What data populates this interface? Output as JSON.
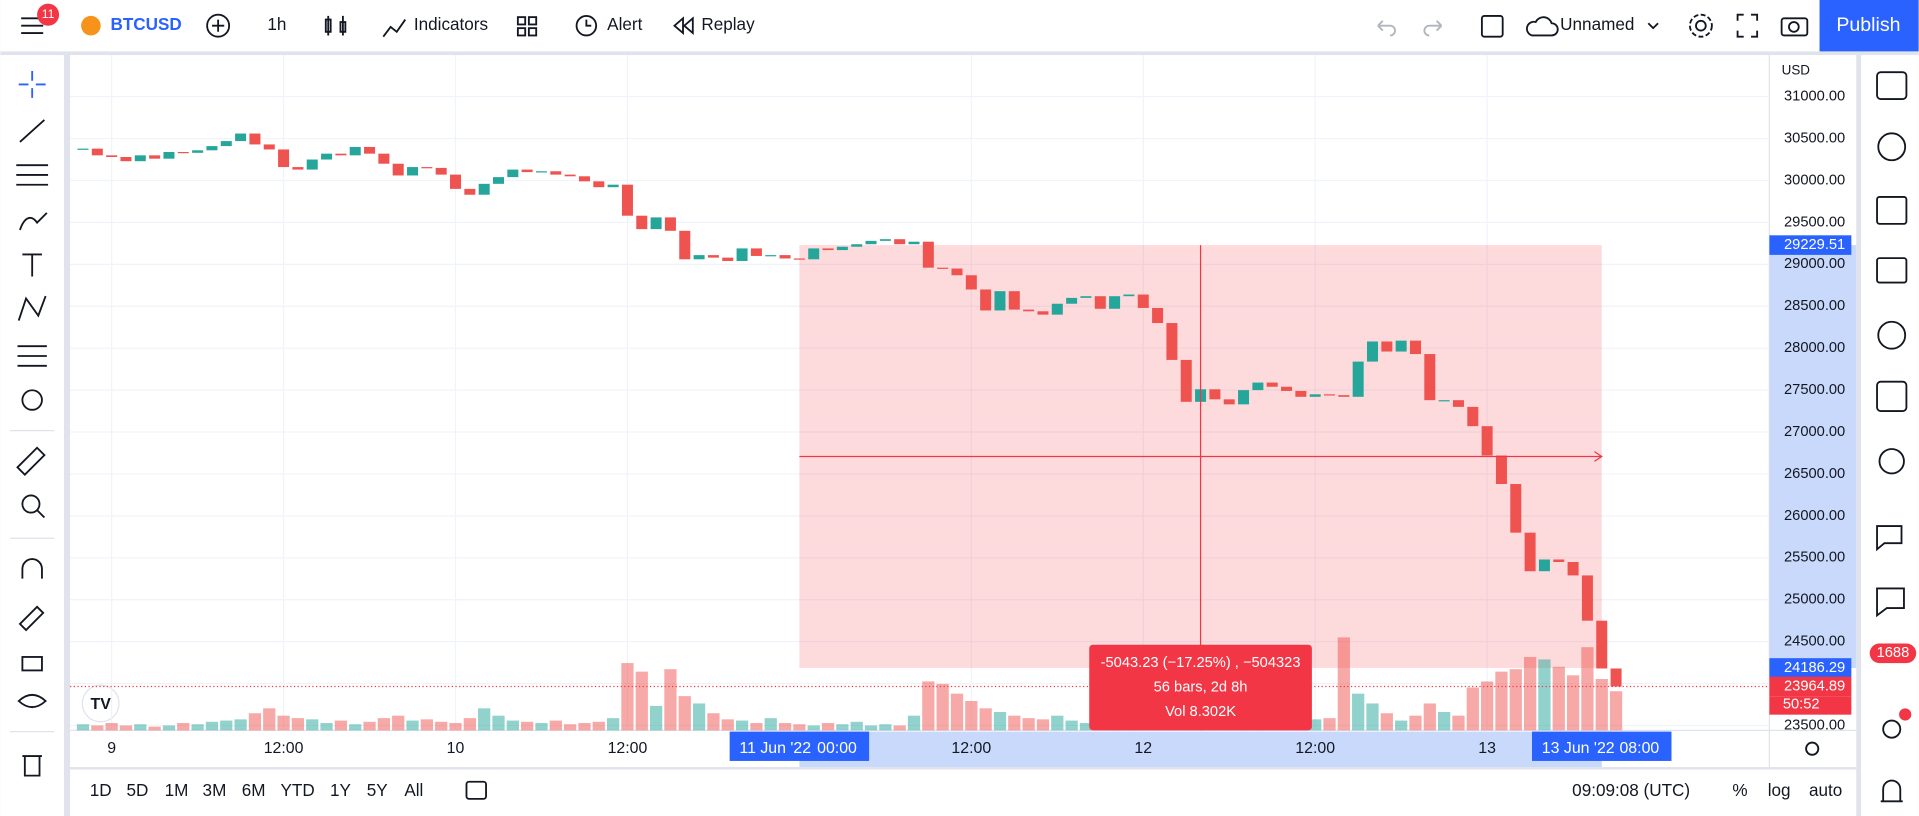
{
  "header": {
    "badge": "11",
    "symbol": "BTCUSD",
    "interval": "1h",
    "buttons": [
      "Indicators",
      "Alert",
      "Replay"
    ],
    "layout_name": "Unnamed",
    "publish": "Publish"
  },
  "footer": {
    "ranges": [
      "1D",
      "5D",
      "1M",
      "3M",
      "6M",
      "YTD",
      "1Y",
      "5Y",
      "All"
    ],
    "clock": "09:09:08 (UTC)",
    "scale_options": [
      "%",
      "log",
      "auto"
    ]
  },
  "sidebar": {
    "notifications": "1688"
  },
  "chart_data": {
    "type": "candlestick",
    "currency": "USD",
    "up_color": "#26a69a",
    "down_color": "#ef5350",
    "x": [
      -2,
      -1,
      0,
      1,
      2,
      3,
      4,
      5,
      6,
      7,
      8,
      9,
      10,
      11,
      12,
      13,
      14,
      15,
      16,
      17,
      18,
      19,
      20,
      21,
      22,
      23,
      24,
      25,
      26,
      27,
      28,
      29,
      30,
      31,
      32,
      33,
      34,
      35,
      36,
      37,
      38,
      39,
      40,
      41,
      42,
      43,
      44,
      45,
      46,
      47,
      48,
      49,
      50,
      51,
      52,
      53,
      54,
      55,
      56,
      57,
      58,
      59,
      60,
      61,
      62,
      63,
      64,
      65,
      66,
      67,
      68,
      69,
      70,
      71,
      72,
      73,
      74,
      75,
      76,
      77,
      78,
      79,
      80,
      81,
      82,
      83,
      84,
      85,
      86,
      87,
      88,
      89,
      90,
      91,
      92,
      93,
      94,
      95,
      96,
      97,
      98,
      99,
      100,
      101,
      102,
      103,
      104,
      105
    ],
    "close": [
      30380,
      30300,
      30280,
      30230,
      30300,
      30260,
      30340,
      30330,
      30360,
      30410,
      30470,
      30560,
      30430,
      30370,
      30160,
      30130,
      30250,
      30320,
      30300,
      30400,
      30320,
      30200,
      30060,
      30160,
      30150,
      30070,
      29900,
      29830,
      29960,
      30040,
      30130,
      30100,
      30110,
      30070,
      30050,
      29990,
      29920,
      29950,
      29580,
      29420,
      29560,
      29400,
      29060,
      29110,
      29080,
      29040,
      29190,
      29100,
      29110,
      29070,
      29060,
      29190,
      29170,
      29210,
      29240,
      29280,
      29300,
      29240,
      29270,
      28960,
      28950,
      28870,
      28700,
      28450,
      28680,
      28460,
      28440,
      28400,
      28530,
      28600,
      28620,
      28470,
      28620,
      28640,
      28480,
      28300,
      27860,
      27360,
      27510,
      27390,
      27330,
      27500,
      27590,
      27540,
      27490,
      27420,
      27450,
      27440,
      27420,
      27840,
      28080,
      27960,
      28090,
      27930,
      27380,
      27380,
      27300,
      27070,
      26720,
      26380,
      25800,
      25340,
      25480,
      25450,
      25290,
      24750,
      24180,
      23965
    ],
    "volume": [
      5,
      4,
      6,
      4,
      5,
      3,
      4,
      6,
      5,
      7,
      8,
      9,
      14,
      18,
      12,
      10,
      9,
      6,
      8,
      5,
      7,
      10,
      12,
      8,
      9,
      7,
      6,
      10,
      18,
      12,
      8,
      7,
      6,
      8,
      5,
      6,
      7,
      10,
      55,
      48,
      20,
      50,
      28,
      22,
      14,
      9,
      8,
      6,
      10,
      6,
      5,
      4,
      6,
      5,
      7,
      4,
      5,
      4,
      12,
      40,
      38,
      30,
      24,
      18,
      15,
      12,
      10,
      9,
      12,
      8,
      6,
      5,
      5,
      4,
      3,
      6,
      18,
      12,
      9,
      7,
      8,
      6,
      7,
      8,
      5,
      6,
      9,
      10,
      76,
      30,
      22,
      14,
      8,
      12,
      22,
      15,
      12,
      35,
      40,
      48,
      50,
      60,
      58,
      52,
      45,
      68,
      42,
      32
    ],
    "xlim": [
      -2.9,
      115.7
    ],
    "xticks": [
      {
        "value": 0,
        "label": "9"
      },
      {
        "value": 12,
        "label": "12:00"
      },
      {
        "value": 24,
        "label": "10"
      },
      {
        "value": 36,
        "label": "12:00"
      },
      {
        "value": 60,
        "label": "12:00"
      },
      {
        "value": 72,
        "label": "12"
      },
      {
        "value": 84,
        "label": "12:00"
      },
      {
        "value": 96,
        "label": "13"
      }
    ],
    "ylim": [
      23442,
      31496
    ],
    "yticks": [
      {
        "value": 23500,
        "label": "23500.00"
      },
      {
        "value": 24000,
        "label": "24000.00"
      },
      {
        "value": 24500,
        "label": "24500.00"
      },
      {
        "value": 25000,
        "label": "25000.00"
      },
      {
        "value": 25500,
        "label": "25500.00"
      },
      {
        "value": 26000,
        "label": "26000.00"
      },
      {
        "value": 26500,
        "label": "26500.00"
      },
      {
        "value": 27000,
        "label": "27000.00"
      },
      {
        "value": 27500,
        "label": "27500.00"
      },
      {
        "value": 28000,
        "label": "28000.00"
      },
      {
        "value": 28500,
        "label": "28500.00"
      },
      {
        "value": 29000,
        "label": "29000.00"
      },
      {
        "value": 29500,
        "label": "29500.00"
      },
      {
        "value": 30000,
        "label": "30000.00"
      },
      {
        "value": 30500,
        "label": "30500.00"
      },
      {
        "value": 31000,
        "label": "31000.00"
      }
    ],
    "grid": true,
    "measure": {
      "x_range": [
        48,
        104
      ],
      "y_range": [
        24186.29,
        29229.51
      ],
      "crosshair_x": 76,
      "color": "#f23645",
      "lines": [
        "-5043.23 (−17.25%) , −504323",
        "56 bars, 2d 8h",
        "Vol 8.302K"
      ]
    },
    "price_labels": [
      {
        "value": 29229.51,
        "color": "#2962ff"
      },
      {
        "value": 24186.29,
        "color": "#2962ff"
      },
      {
        "value": 23964.89,
        "color": "#f23645"
      }
    ],
    "countdown": "50:52",
    "range_labels": [
      {
        "value": 48,
        "date": "11 Jun '22",
        "time": "00:00"
      },
      {
        "value": 104,
        "date": "13 Jun '22",
        "time": "08:00"
      }
    ]
  }
}
